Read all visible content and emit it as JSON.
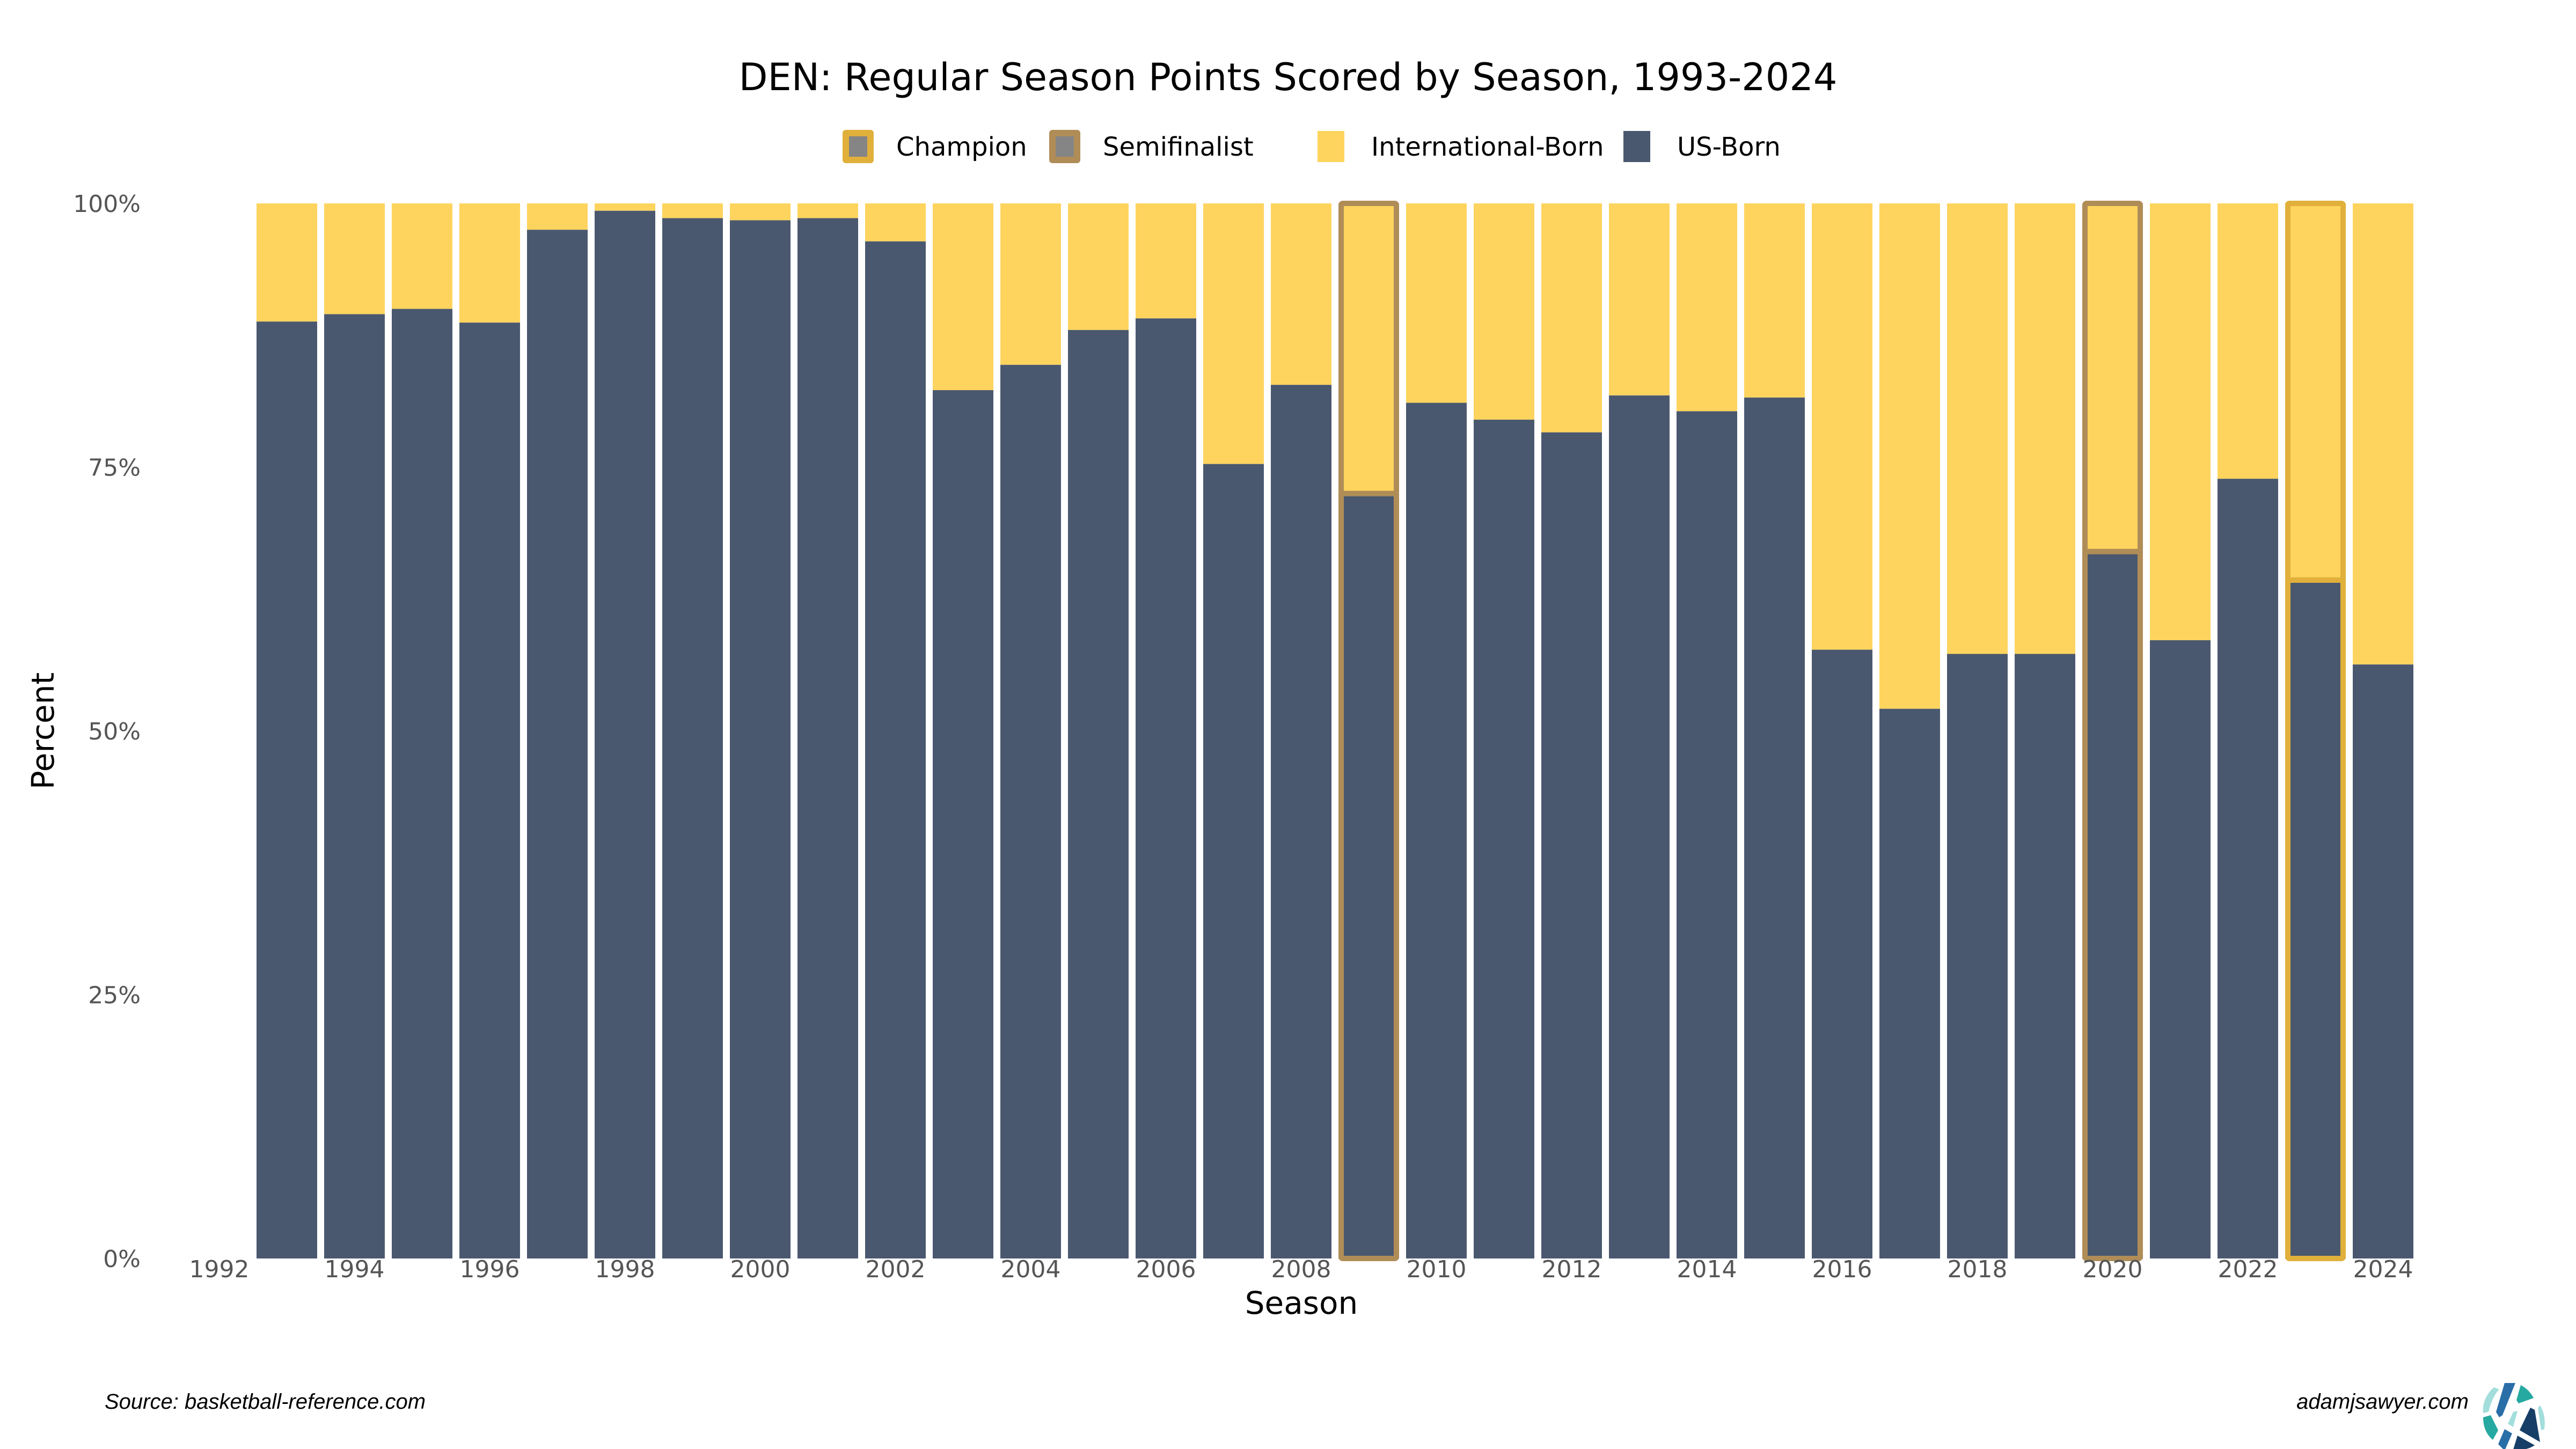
{
  "chart_data": {
    "type": "bar",
    "stacked": true,
    "normalized": true,
    "title": "DEN: Regular Season Points Scored by Season, 1993-2024",
    "xlabel": "Season",
    "ylabel": "Percent",
    "ylim": [
      0,
      100
    ],
    "yticks": [
      "0%",
      "25%",
      "50%",
      "75%",
      "100%"
    ],
    "ytick_values": [
      0,
      25,
      50,
      75,
      100
    ],
    "xticks": [
      "1992",
      "1994",
      "1996",
      "1998",
      "2000",
      "2002",
      "2004",
      "2006",
      "2008",
      "2010",
      "2012",
      "2014",
      "2016",
      "2018",
      "2020",
      "2022",
      "2024"
    ],
    "xtick_values": [
      1992,
      1994,
      1996,
      1998,
      2000,
      2002,
      2004,
      2006,
      2008,
      2010,
      2012,
      2014,
      2016,
      2018,
      2020,
      2022,
      2024
    ],
    "grid": false,
    "legend_position": "top",
    "legend": [
      {
        "label": "Champion",
        "kind": "outline",
        "color": "#E0B03A"
      },
      {
        "label": "Semifinalist",
        "kind": "outline",
        "color": "#B08D57"
      },
      {
        "label": "International-Born",
        "kind": "fill",
        "color": "#FED45E"
      },
      {
        "label": "US-Born",
        "kind": "fill",
        "color": "#4A586F"
      }
    ],
    "categories": [
      1993,
      1994,
      1995,
      1996,
      1997,
      1998,
      1999,
      2000,
      2001,
      2002,
      2003,
      2004,
      2005,
      2006,
      2007,
      2008,
      2009,
      2010,
      2011,
      2012,
      2013,
      2014,
      2015,
      2016,
      2017,
      2018,
      2019,
      2020,
      2021,
      2022,
      2023,
      2024
    ],
    "series": [
      {
        "name": "US-Born",
        "color": "#4A586F",
        "values": [
          88.8,
          89.5,
          90.0,
          88.7,
          97.5,
          99.3,
          98.6,
          98.4,
          98.6,
          96.4,
          82.3,
          84.7,
          88.0,
          89.1,
          75.3,
          82.8,
          72.5,
          81.1,
          79.5,
          78.3,
          81.8,
          80.3,
          81.6,
          57.7,
          52.1,
          57.3,
          57.3,
          67.0,
          58.6,
          73.9,
          64.3,
          56.3
        ]
      },
      {
        "name": "International-Born",
        "color": "#FED45E",
        "values": [
          11.2,
          10.5,
          10.0,
          11.3,
          2.5,
          0.7,
          1.4,
          1.6,
          1.4,
          3.6,
          17.7,
          15.3,
          12.0,
          10.9,
          24.7,
          17.2,
          27.5,
          18.9,
          20.5,
          21.7,
          18.2,
          19.7,
          18.4,
          42.3,
          47.9,
          42.7,
          42.7,
          33.0,
          41.4,
          26.1,
          35.7,
          43.7
        ]
      }
    ],
    "highlights": [
      {
        "season": 2009,
        "status": "Semifinalist"
      },
      {
        "season": 2020,
        "status": "Semifinalist"
      },
      {
        "season": 2023,
        "status": "Champion"
      }
    ]
  },
  "footer": {
    "source": "Source: basketball-reference.com",
    "site": "adamjsawyer.com"
  }
}
